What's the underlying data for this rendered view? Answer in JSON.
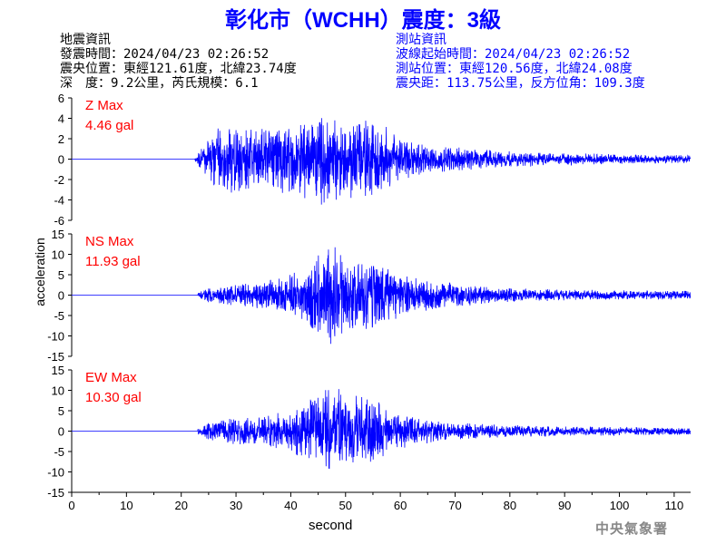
{
  "title": "彰化市（WCHH）震度：3級",
  "quake_info": {
    "heading": "地震資訊",
    "origin_time": "發震時間：2024/04/23 02:26:52",
    "epicenter": "震央位置：東經121.61度，北緯23.74度",
    "depth_mag": "深　度：9.2公里，芮氏規模：6.1"
  },
  "station_info": {
    "heading": "測站資訊",
    "wave_start": "波線起始時間：2024/04/23 02:26:52",
    "location": "測站位置：東經120.56度，北緯24.08度",
    "distance": "震央距：113.75公里，反方位角：109.3度"
  },
  "footer": "中央氣象署",
  "colors": {
    "title": "#0000ff",
    "trace": "#0000ff",
    "max_label": "#ff0000",
    "axis": "#000000"
  },
  "chart_data": [
    {
      "type": "line",
      "component": "Z",
      "max_label": "Z Max",
      "max_value": "4.46 gal",
      "peak_gal": 4.46,
      "xlim": [
        0,
        113
      ],
      "ylim": [
        -6,
        6
      ],
      "yticks": [
        -6,
        -4,
        -2,
        0,
        2,
        4,
        6
      ],
      "onset_s": 22.5,
      "envelope": [
        [
          0,
          0
        ],
        [
          22,
          0
        ],
        [
          23,
          0.4
        ],
        [
          25,
          2.0
        ],
        [
          27,
          2.3
        ],
        [
          30,
          2.6
        ],
        [
          35,
          2.4
        ],
        [
          40,
          2.6
        ],
        [
          44,
          3.0
        ],
        [
          46,
          3.5
        ],
        [
          48,
          3.2
        ],
        [
          50,
          2.9
        ],
        [
          53,
          2.8
        ],
        [
          55,
          3.0
        ],
        [
          57,
          2.5
        ],
        [
          60,
          1.6
        ],
        [
          65,
          1.0
        ],
        [
          70,
          0.9
        ],
        [
          75,
          0.7
        ],
        [
          80,
          0.6
        ],
        [
          90,
          0.45
        ],
        [
          100,
          0.35
        ],
        [
          113,
          0.3
        ]
      ]
    },
    {
      "type": "line",
      "component": "NS",
      "max_label": "NS Max",
      "max_value": "11.93 gal",
      "peak_gal": 11.93,
      "xlim": [
        0,
        113
      ],
      "ylim": [
        -15,
        15
      ],
      "yticks": [
        -15,
        -10,
        -5,
        0,
        5,
        10,
        15
      ],
      "onset_s": 23,
      "envelope": [
        [
          0,
          0
        ],
        [
          22,
          0
        ],
        [
          23,
          0.4
        ],
        [
          25,
          1.2
        ],
        [
          30,
          1.6
        ],
        [
          35,
          2.0
        ],
        [
          40,
          3.0
        ],
        [
          43,
          4.5
        ],
        [
          45,
          6.0
        ],
        [
          47,
          8.0
        ],
        [
          48,
          7.0
        ],
        [
          50,
          5.5
        ],
        [
          53,
          5.0
        ],
        [
          55,
          5.5
        ],
        [
          57,
          4.5
        ],
        [
          60,
          3.0
        ],
        [
          65,
          2.2
        ],
        [
          70,
          1.8
        ],
        [
          75,
          1.4
        ],
        [
          80,
          1.0
        ],
        [
          90,
          0.8
        ],
        [
          100,
          0.7
        ],
        [
          113,
          0.6
        ]
      ]
    },
    {
      "type": "line",
      "component": "EW",
      "max_label": "EW Max",
      "max_value": "10.30 gal",
      "peak_gal": 10.3,
      "xlim": [
        0,
        113
      ],
      "ylim": [
        -15,
        15
      ],
      "yticks": [
        -15,
        -10,
        -5,
        0,
        5,
        10,
        15
      ],
      "onset_s": 23,
      "envelope": [
        [
          0,
          0
        ],
        [
          22,
          0
        ],
        [
          23,
          0.5
        ],
        [
          25,
          1.5
        ],
        [
          28,
          2.0
        ],
        [
          30,
          2.2
        ],
        [
          35,
          2.5
        ],
        [
          40,
          3.5
        ],
        [
          43,
          5.0
        ],
        [
          45,
          6.5
        ],
        [
          47,
          7.5
        ],
        [
          49,
          7.0
        ],
        [
          51,
          6.0
        ],
        [
          55,
          5.5
        ],
        [
          58,
          4.0
        ],
        [
          60,
          3.0
        ],
        [
          65,
          2.0
        ],
        [
          70,
          1.5
        ],
        [
          75,
          1.2
        ],
        [
          80,
          1.0
        ],
        [
          90,
          0.8
        ],
        [
          100,
          0.7
        ],
        [
          113,
          0.6
        ]
      ]
    }
  ],
  "axes": {
    "ylabel": "acceleration",
    "xlabel": "second",
    "xticks": [
      0,
      10,
      20,
      30,
      40,
      50,
      60,
      70,
      80,
      90,
      100,
      110
    ]
  }
}
